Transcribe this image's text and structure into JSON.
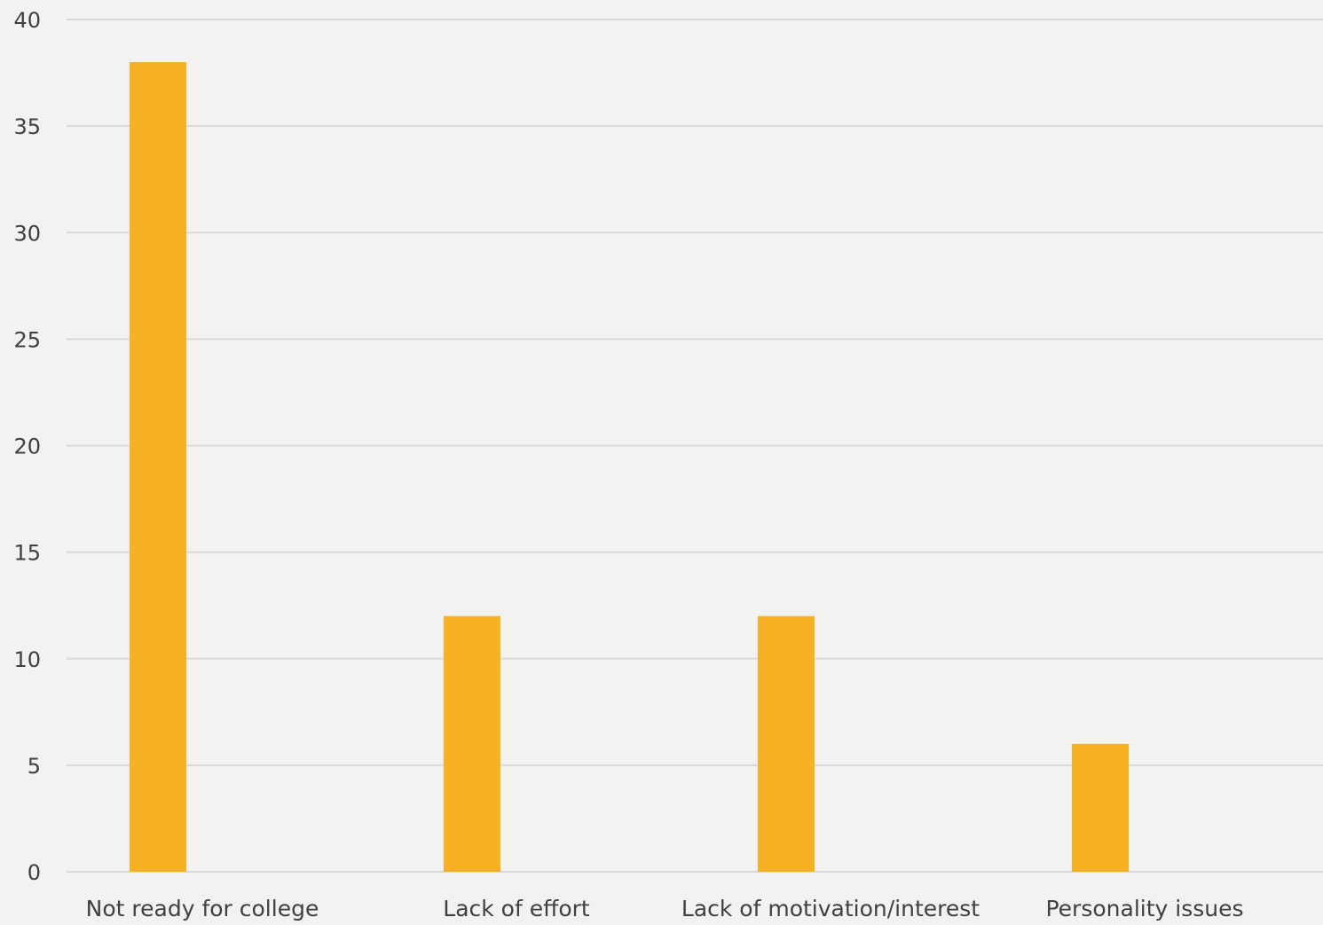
{
  "chart_data": {
    "type": "bar",
    "title": "",
    "xlabel": "",
    "ylabel": "",
    "categories": [
      "Not ready for college",
      "Lack of effort",
      "Lack of motivation/interest",
      "Personality issues"
    ],
    "series": [
      {
        "values": [
          38,
          12,
          12,
          6
        ]
      }
    ],
    "ylim": [
      0,
      40
    ],
    "yticks": [
      0,
      5,
      10,
      15,
      20,
      25,
      30,
      35,
      40
    ],
    "grid": true,
    "legend": "none",
    "colors": {
      "bar": "#f7b122",
      "gridline": "#d9d9d9",
      "text": "#404040",
      "background": "#f2f2f0"
    }
  }
}
